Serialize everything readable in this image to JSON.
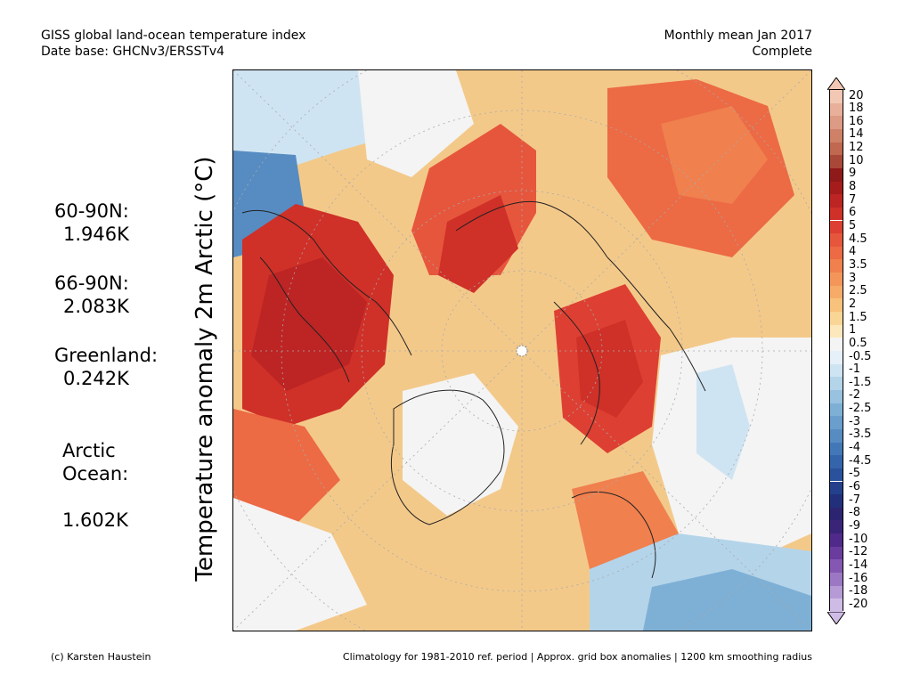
{
  "header": {
    "title": "GISS global land-ocean temperature index",
    "date_base": "Date base: GHCNv3/ERSSTv4",
    "period": "Monthly mean Jan 2017",
    "status": "Complete"
  },
  "regions": [
    {
      "name": "60-90N:",
      "value": "1.946K"
    },
    {
      "name": "66-90N:",
      "value": "2.083K"
    },
    {
      "name": "Greenland:",
      "value": "0.242K"
    },
    {
      "name": "Arctic\nOcean:",
      "value": "1.602K"
    }
  ],
  "axis_label": "Temperature anomaly 2m Arctic (°C)",
  "legend": {
    "labels": [
      "20",
      "18",
      "16",
      "14",
      "12",
      "10",
      "9",
      "8",
      "7",
      "6",
      "5",
      "4.5",
      "4",
      "3.5",
      "3",
      "2.5",
      "2",
      "1.5",
      "1",
      "0.5",
      "-0.5",
      "-1",
      "-1.5",
      "-2",
      "-2.5",
      "-3",
      "-3.5",
      "-4",
      "-4.5",
      "-5",
      "-6",
      "-7",
      "-8",
      "-9",
      "-10",
      "-12",
      "-14",
      "-16",
      "-18",
      "-20"
    ],
    "colors": [
      "#f2c8b4",
      "#e8b09a",
      "#dd9a84",
      "#cf8168",
      "#c06850",
      "#a84838",
      "#8e1a1a",
      "#a51c1c",
      "#bd2424",
      "#cf3028",
      "#dd4032",
      "#e6563c",
      "#ec6a44",
      "#f0804e",
      "#f4965a",
      "#f6ac68",
      "#f8c27c",
      "#fad696",
      "#fce8bc",
      "#f4f4f4",
      "#e6f0f8",
      "#cfe4f2",
      "#b4d4ea",
      "#98c2e0",
      "#7eb0d6",
      "#6a9ecc",
      "#568cc2",
      "#4278b8",
      "#3464aa",
      "#2a529c",
      "#24408c",
      "#22307c",
      "#2c2470",
      "#3a2478",
      "#502a8a",
      "#6a3c9e",
      "#8458b2",
      "#9c78c4",
      "#b69ad6",
      "#cfbce6"
    ]
  },
  "footer": {
    "credit": "(c) Karsten Haustein",
    "note": "Climatology for 1981-2010 ref. period | Approx. grid box anomalies | 1200 km smoothing radius"
  }
}
